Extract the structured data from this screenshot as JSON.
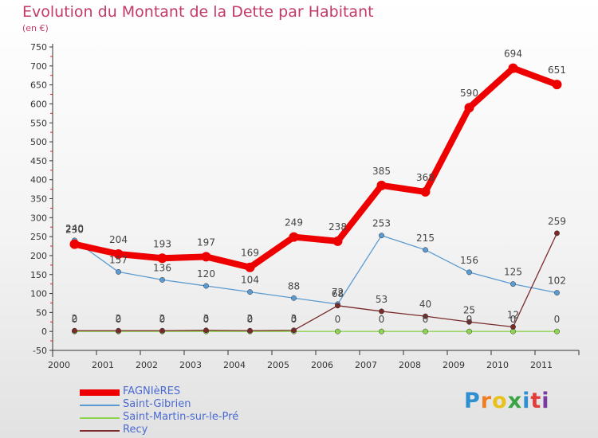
{
  "header": {
    "title": "Evolution du Montant de la Dette par Habitant",
    "subtitle": "(en €)"
  },
  "brand": {
    "text": "Proxiti",
    "letter_colors": [
      "#2f8fd0",
      "#f07e22",
      "#e8c21a",
      "#3aa444",
      "#2f8fd0",
      "#e23c3c",
      "#7a3aa0"
    ]
  },
  "chart_data": {
    "type": "line",
    "title": "Evolution du Montant de la Dette par Habitant",
    "subtitle": "(en €)",
    "x": [
      "2000",
      "2001",
      "2002",
      "2003",
      "2004",
      "2005",
      "2006",
      "2007",
      "2008",
      "2009",
      "2010",
      "2011"
    ],
    "ylim": [
      -50,
      750
    ],
    "yticks": [
      -50,
      0,
      50,
      100,
      150,
      200,
      250,
      300,
      350,
      400,
      450,
      500,
      550,
      600,
      650,
      700,
      750
    ],
    "grid": false,
    "legend_position": "bottom-left",
    "series": [
      {
        "name": "FAGNIèRES",
        "color": "#ee0000",
        "values": [
          230,
          204,
          193,
          197,
          169,
          249,
          238,
          385,
          368,
          590,
          694,
          651
        ]
      },
      {
        "name": "Saint-Gibrien",
        "color": "#5b9bd1",
        "values": [
          240,
          157,
          136,
          120,
          104,
          88,
          72,
          253,
          215,
          156,
          125,
          102
        ]
      },
      {
        "name": "Saint-Martin-sur-le-Pré",
        "color": "#8fd44f",
        "values": [
          0,
          0,
          0,
          0,
          0,
          0,
          0,
          0,
          0,
          0,
          0,
          0
        ]
      },
      {
        "name": "Recy",
        "color": "#7a2a2a",
        "values": [
          2,
          2,
          2,
          3,
          2,
          3,
          68,
          53,
          40,
          25,
          12,
          259
        ]
      }
    ]
  }
}
